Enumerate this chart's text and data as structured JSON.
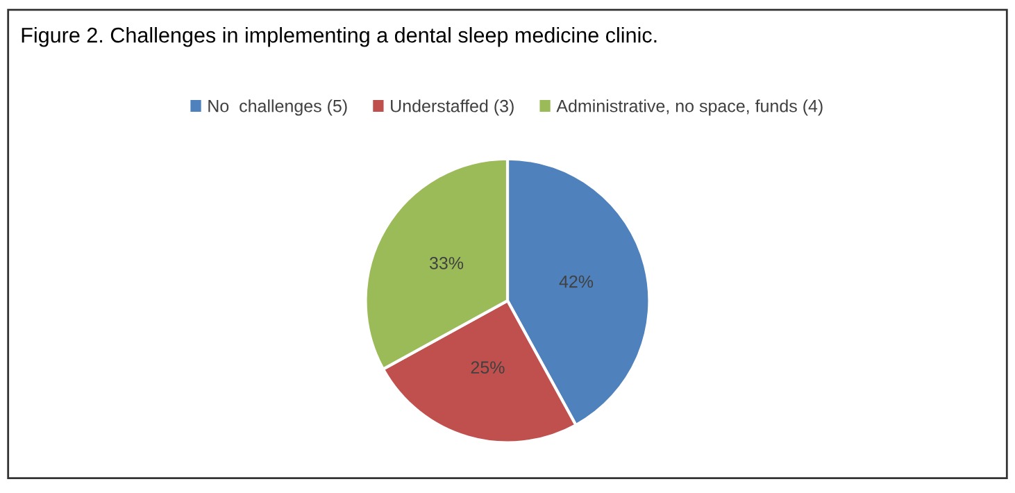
{
  "chart_data": {
    "type": "pie",
    "title": "Figure 2. Challenges in implementing a dental sleep medicine clinic.",
    "categories": [
      "No  challenges (5)",
      "Understaffed (3)",
      "Administrative, no space, funds (4)"
    ],
    "values": [
      42,
      25,
      33
    ],
    "value_labels": [
      "42%",
      "25%",
      "33%"
    ],
    "colors": [
      "#4f81bd",
      "#c0504d",
      "#9bbb59"
    ],
    "legend": "top"
  }
}
